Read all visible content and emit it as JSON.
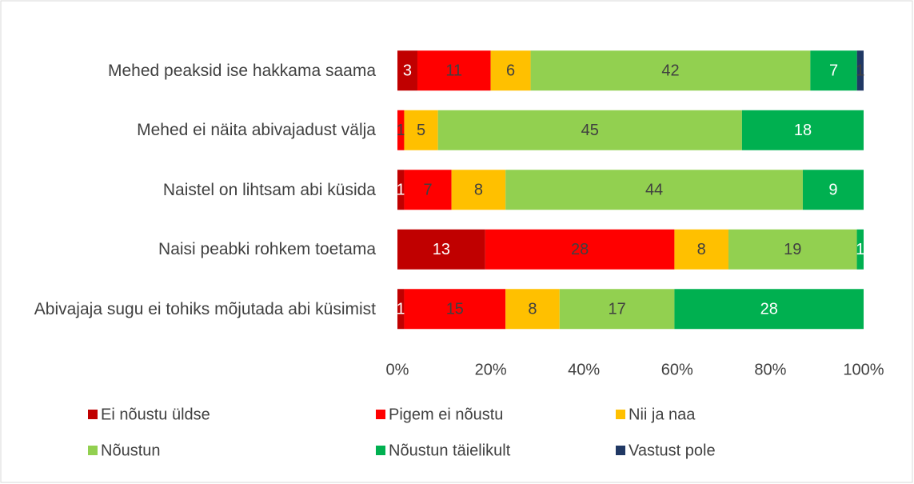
{
  "chart_data": {
    "type": "bar",
    "orientation": "horizontal",
    "stacking": "percent",
    "categories": [
      "Mehed peaksid ise hakkama saama",
      "Mehed ei näita abivajadust välja",
      "Naistel on lihtsam abi küsida",
      "Naisi peabki rohkem toetama",
      "Abivajaja sugu ei tohiks mõjutada abi küsimist"
    ],
    "series": [
      {
        "name": "Ei nõustu üldse",
        "color": "#c00000",
        "label_color": "#ffffff",
        "values": [
          3,
          null,
          1,
          13,
          1
        ]
      },
      {
        "name": "Pigem ei nõustu",
        "color": "#ff0000",
        "label_color": "#404040",
        "values": [
          11,
          1,
          7,
          28,
          15
        ]
      },
      {
        "name": "Nii ja naa",
        "color": "#ffc000",
        "label_color": "#404040",
        "values": [
          6,
          5,
          8,
          8,
          8
        ]
      },
      {
        "name": "Nõustun",
        "color": "#92d050",
        "label_color": "#404040",
        "values": [
          42,
          45,
          44,
          19,
          17
        ]
      },
      {
        "name": "Nõustun täielikult",
        "color": "#00b050",
        "label_color": "#ffffff",
        "values": [
          7,
          18,
          9,
          1,
          28
        ]
      },
      {
        "name": "Vastust pole",
        "color": "#203864",
        "label_color": "#404040",
        "values": [
          1,
          null,
          null,
          null,
          null
        ]
      }
    ],
    "xlim": [
      0,
      100
    ],
    "xticks": [
      {
        "value": 0,
        "label": "0%"
      },
      {
        "value": 20,
        "label": "20%"
      },
      {
        "value": 40,
        "label": "40%"
      },
      {
        "value": 60,
        "label": "60%"
      },
      {
        "value": 80,
        "label": "80%"
      },
      {
        "value": 100,
        "label": "100%"
      }
    ],
    "grid": false,
    "legend": "bottom"
  }
}
